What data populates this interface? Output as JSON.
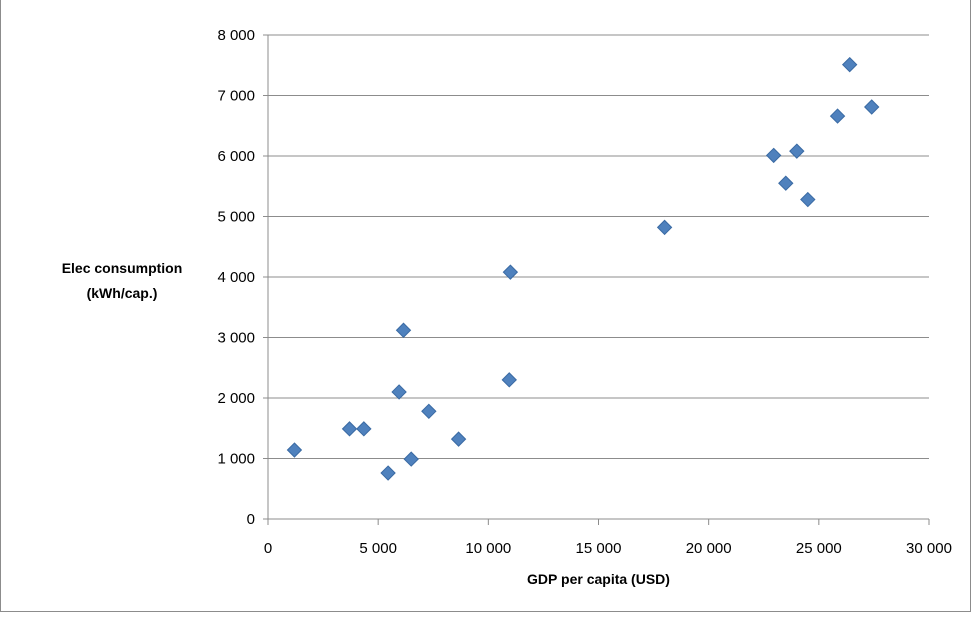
{
  "chart_data": {
    "type": "scatter",
    "title": "",
    "xlabel": "GDP per capita (USD)",
    "ylabel_lines": [
      "Elec consumption",
      "(kWh/cap.)"
    ],
    "xlim": [
      0,
      30000
    ],
    "ylim": [
      0,
      8000
    ],
    "x_ticks": [
      0,
      5000,
      10000,
      15000,
      20000,
      25000,
      30000
    ],
    "x_tick_labels": [
      "0",
      "5 000",
      "10 000",
      "15 000",
      "20 000",
      "25 000",
      "30 000"
    ],
    "y_ticks": [
      0,
      1000,
      2000,
      3000,
      4000,
      5000,
      6000,
      7000,
      8000
    ],
    "y_tick_labels": [
      "0",
      "1 000",
      "2 000",
      "3 000",
      "4 000",
      "5 000",
      "6 000",
      "7 000",
      "8 000"
    ],
    "grid": "horizontal",
    "marker_color": "#4f81bd",
    "marker_edge_color": "#3a6aa3",
    "marker_shape": "diamond",
    "series": [
      {
        "points": [
          {
            "x": 1200,
            "y": 1140
          },
          {
            "x": 3700,
            "y": 1490
          },
          {
            "x": 4350,
            "y": 1490
          },
          {
            "x": 5450,
            "y": 760
          },
          {
            "x": 5950,
            "y": 2100
          },
          {
            "x": 6150,
            "y": 3120
          },
          {
            "x": 6500,
            "y": 990
          },
          {
            "x": 7300,
            "y": 1780
          },
          {
            "x": 8650,
            "y": 1320
          },
          {
            "x": 10950,
            "y": 2300
          },
          {
            "x": 11000,
            "y": 4080
          },
          {
            "x": 18000,
            "y": 4820
          },
          {
            "x": 22950,
            "y": 6010
          },
          {
            "x": 23500,
            "y": 5550
          },
          {
            "x": 24000,
            "y": 6080
          },
          {
            "x": 24500,
            "y": 5280
          },
          {
            "x": 25850,
            "y": 6660
          },
          {
            "x": 26400,
            "y": 7510
          },
          {
            "x": 27400,
            "y": 6810
          }
        ]
      }
    ]
  }
}
